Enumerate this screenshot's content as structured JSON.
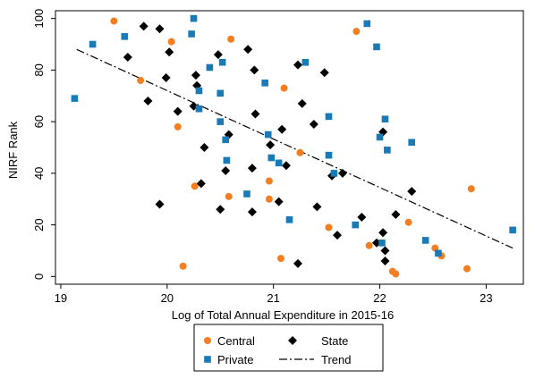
{
  "chart_data": {
    "type": "scatter",
    "xlabel": "Log of Total Annual Expenditure in 2015-16",
    "ylabel": "NIRF Rank",
    "xlim": [
      18.95,
      23.35
    ],
    "ylim": [
      -3,
      103
    ],
    "xticks": [
      19,
      20,
      21,
      22,
      23
    ],
    "yticks": [
      0,
      20,
      40,
      60,
      80,
      100
    ],
    "grid": false,
    "legend_position": "bottom",
    "series": [
      {
        "name": "Central",
        "marker": "circle",
        "color": "#f47e20",
        "points": [
          [
            19.5,
            99
          ],
          [
            19.75,
            76
          ],
          [
            20.04,
            91
          ],
          [
            20.1,
            58
          ],
          [
            20.15,
            4
          ],
          [
            20.26,
            35
          ],
          [
            20.6,
            92
          ],
          [
            20.58,
            31
          ],
          [
            20.96,
            37
          ],
          [
            20.96,
            30
          ],
          [
            21.07,
            7
          ],
          [
            21.1,
            73
          ],
          [
            21.25,
            48
          ],
          [
            21.52,
            19
          ],
          [
            21.78,
            95
          ],
          [
            21.9,
            12
          ],
          [
            22.12,
            2
          ],
          [
            22.15,
            1
          ],
          [
            22.27,
            21
          ],
          [
            22.52,
            11
          ],
          [
            22.58,
            8
          ],
          [
            22.82,
            3
          ],
          [
            22.86,
            34
          ]
        ]
      },
      {
        "name": "State",
        "marker": "diamond",
        "color": "#000000",
        "points": [
          [
            19.63,
            85
          ],
          [
            19.78,
            97
          ],
          [
            19.82,
            68
          ],
          [
            19.93,
            96
          ],
          [
            19.99,
            77
          ],
          [
            20.02,
            87
          ],
          [
            19.93,
            28
          ],
          [
            20.1,
            64
          ],
          [
            20.25,
            66
          ],
          [
            20.27,
            78
          ],
          [
            20.28,
            74
          ],
          [
            20.32,
            36
          ],
          [
            20.35,
            50
          ],
          [
            20.48,
            86
          ],
          [
            20.5,
            26
          ],
          [
            20.55,
            41
          ],
          [
            20.58,
            55
          ],
          [
            20.76,
            88
          ],
          [
            20.8,
            42
          ],
          [
            20.82,
            80
          ],
          [
            20.83,
            63
          ],
          [
            20.8,
            25
          ],
          [
            20.97,
            51
          ],
          [
            21.05,
            29
          ],
          [
            21.08,
            57
          ],
          [
            21.12,
            43
          ],
          [
            21.23,
            5
          ],
          [
            21.27,
            67
          ],
          [
            21.23,
            82
          ],
          [
            21.38,
            59
          ],
          [
            21.41,
            27
          ],
          [
            21.48,
            79
          ],
          [
            21.55,
            39
          ],
          [
            21.6,
            16
          ],
          [
            21.65,
            40
          ],
          [
            21.83,
            23
          ],
          [
            21.97,
            13
          ],
          [
            22.03,
            56
          ],
          [
            22.03,
            17
          ],
          [
            22.05,
            10
          ],
          [
            22.05,
            6
          ],
          [
            22.15,
            24
          ],
          [
            22.3,
            33
          ]
        ]
      },
      {
        "name": "Private",
        "marker": "square",
        "color": "#1a7ab5",
        "points": [
          [
            19.13,
            69
          ],
          [
            19.3,
            90
          ],
          [
            19.6,
            93
          ],
          [
            20.23,
            94
          ],
          [
            20.25,
            100
          ],
          [
            20.3,
            65
          ],
          [
            20.3,
            72
          ],
          [
            20.4,
            81
          ],
          [
            20.5,
            60
          ],
          [
            20.5,
            71
          ],
          [
            20.52,
            83
          ],
          [
            20.55,
            53
          ],
          [
            20.56,
            45
          ],
          [
            20.75,
            32
          ],
          [
            20.92,
            75
          ],
          [
            20.95,
            55
          ],
          [
            20.98,
            46
          ],
          [
            21.05,
            44
          ],
          [
            21.15,
            22
          ],
          [
            21.3,
            83
          ],
          [
            21.52,
            62
          ],
          [
            21.52,
            47
          ],
          [
            21.57,
            40
          ],
          [
            21.77,
            20
          ],
          [
            21.88,
            98
          ],
          [
            21.97,
            89
          ],
          [
            22.0,
            54
          ],
          [
            22.02,
            13
          ],
          [
            22.05,
            61
          ],
          [
            22.07,
            49
          ],
          [
            22.3,
            52
          ],
          [
            22.43,
            14
          ],
          [
            22.55,
            9
          ],
          [
            23.25,
            18
          ]
        ]
      }
    ],
    "trend": {
      "name": "Trend",
      "style": "dash-dot",
      "color": "#000000",
      "x": [
        19.15,
        23.25
      ],
      "y": [
        88,
        11
      ]
    },
    "legend": [
      {
        "label": "Central",
        "marker": "circle",
        "color": "#f47e20"
      },
      {
        "label": "State",
        "marker": "diamond",
        "color": "#000000"
      },
      {
        "label": "Private",
        "marker": "square",
        "color": "#1a7ab5"
      },
      {
        "label": "Trend",
        "marker": "dash-dot",
        "color": "#000000"
      }
    ]
  }
}
